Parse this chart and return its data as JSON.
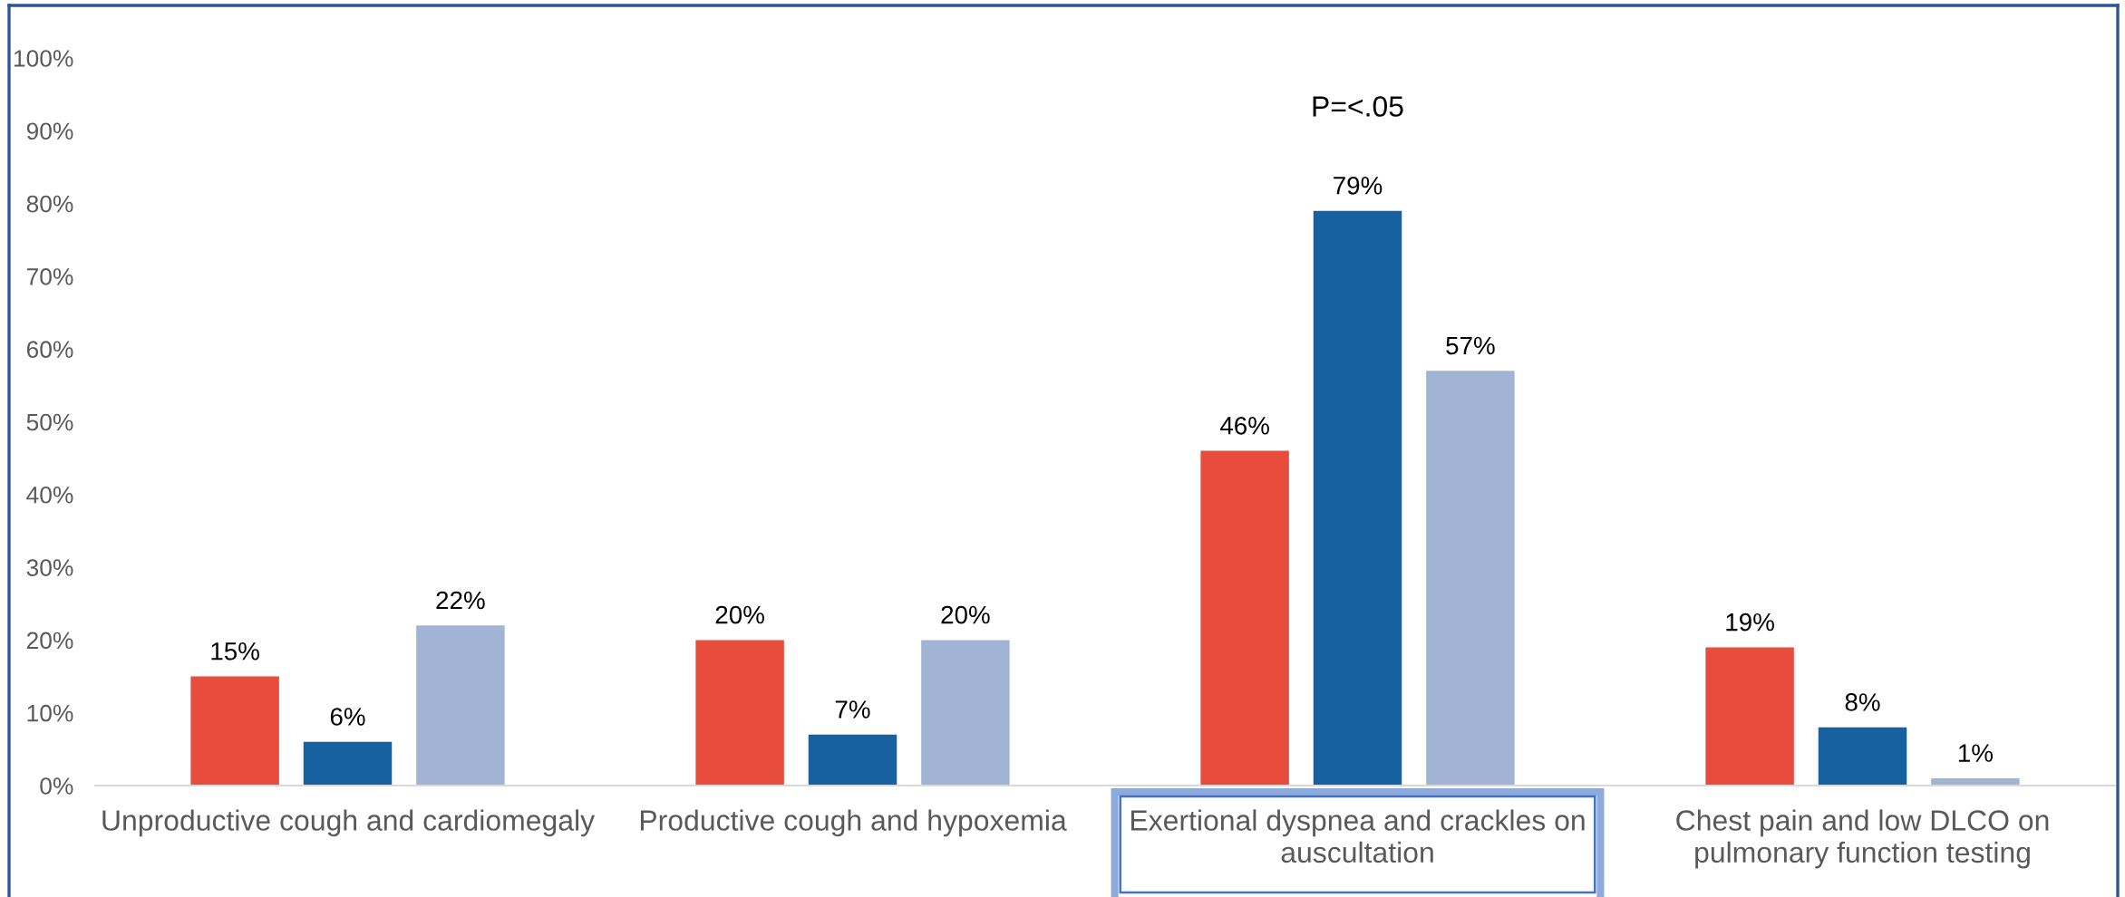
{
  "chart_data": {
    "type": "bar",
    "categories": [
      "Unproductive cough and cardiomegaly",
      "Productive cough and hypoxemia",
      "Exertional dyspnea and crackles on auscultation",
      "Chest pain and low DLCO on pulmonary function testing"
    ],
    "series": [
      {
        "color": "#e84c3d",
        "values": [
          15,
          20,
          46,
          19
        ],
        "value_labels": [
          "15%",
          "20%",
          "46%",
          "19%"
        ]
      },
      {
        "color": "#1761a0",
        "values": [
          6,
          7,
          79,
          8
        ],
        "value_labels": [
          "6%",
          "7%",
          "79%",
          "8%"
        ]
      },
      {
        "color": "#a2b4d4",
        "values": [
          22,
          20,
          57,
          1
        ],
        "value_labels": [
          "22%",
          "20%",
          "57%",
          "1%"
        ]
      }
    ],
    "ylim": [
      0,
      100
    ],
    "yticks": [
      {
        "value": 0,
        "label": "0%"
      },
      {
        "value": 10,
        "label": "10%"
      },
      {
        "value": 20,
        "label": "20%"
      },
      {
        "value": 30,
        "label": "30%"
      },
      {
        "value": 40,
        "label": "40%"
      },
      {
        "value": 50,
        "label": "50%"
      },
      {
        "value": 60,
        "label": "60%"
      },
      {
        "value": 70,
        "label": "70%"
      },
      {
        "value": 80,
        "label": "80%"
      },
      {
        "value": 90,
        "label": "90%"
      },
      {
        "value": 100,
        "label": "100%"
      }
    ],
    "annotations": [
      "P=<.05"
    ]
  }
}
